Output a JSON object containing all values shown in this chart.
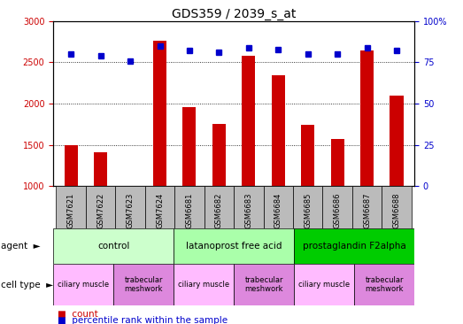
{
  "title": "GDS359 / 2039_s_at",
  "samples": [
    "GSM7621",
    "GSM7622",
    "GSM7623",
    "GSM7624",
    "GSM6681",
    "GSM6682",
    "GSM6683",
    "GSM6684",
    "GSM6685",
    "GSM6686",
    "GSM6687",
    "GSM6688"
  ],
  "counts": [
    1500,
    1415,
    1010,
    2760,
    1960,
    1760,
    2580,
    2340,
    1740,
    1570,
    2640,
    2100
  ],
  "percentiles": [
    80,
    79,
    76,
    85,
    82,
    81,
    84,
    83,
    80,
    80,
    84,
    82
  ],
  "ylim_left": [
    1000,
    3000
  ],
  "ylim_right": [
    0,
    100
  ],
  "yticks_left": [
    1000,
    1500,
    2000,
    2500,
    3000
  ],
  "yticks_right": [
    0,
    25,
    50,
    75,
    100
  ],
  "bar_color": "#cc0000",
  "dot_color": "#0000cc",
  "agents": [
    {
      "label": "control",
      "start": 0,
      "end": 4,
      "color": "#ccffcc"
    },
    {
      "label": "latanoprost free acid",
      "start": 4,
      "end": 8,
      "color": "#aaffaa"
    },
    {
      "label": "prostaglandin F2alpha",
      "start": 8,
      "end": 12,
      "color": "#00cc00"
    }
  ],
  "cell_types": [
    {
      "label": "ciliary muscle",
      "start": 0,
      "end": 2,
      "color": "#ffbbff"
    },
    {
      "label": "trabecular\nmeshwork",
      "start": 2,
      "end": 4,
      "color": "#dd88dd"
    },
    {
      "label": "ciliary muscle",
      "start": 4,
      "end": 6,
      "color": "#ffbbff"
    },
    {
      "label": "trabecular\nmeshwork",
      "start": 6,
      "end": 8,
      "color": "#dd88dd"
    },
    {
      "label": "ciliary muscle",
      "start": 8,
      "end": 10,
      "color": "#ffbbff"
    },
    {
      "label": "trabecular\nmeshwork",
      "start": 10,
      "end": 12,
      "color": "#dd88dd"
    }
  ],
  "legend_count_label": "count",
  "legend_pct_label": "percentile rank within the sample",
  "agent_row_label": "agent",
  "celltype_row_label": "cell type",
  "sample_bg_color": "#bbbbbb",
  "title_fontsize": 10,
  "tick_fontsize": 7,
  "bar_width": 0.45
}
